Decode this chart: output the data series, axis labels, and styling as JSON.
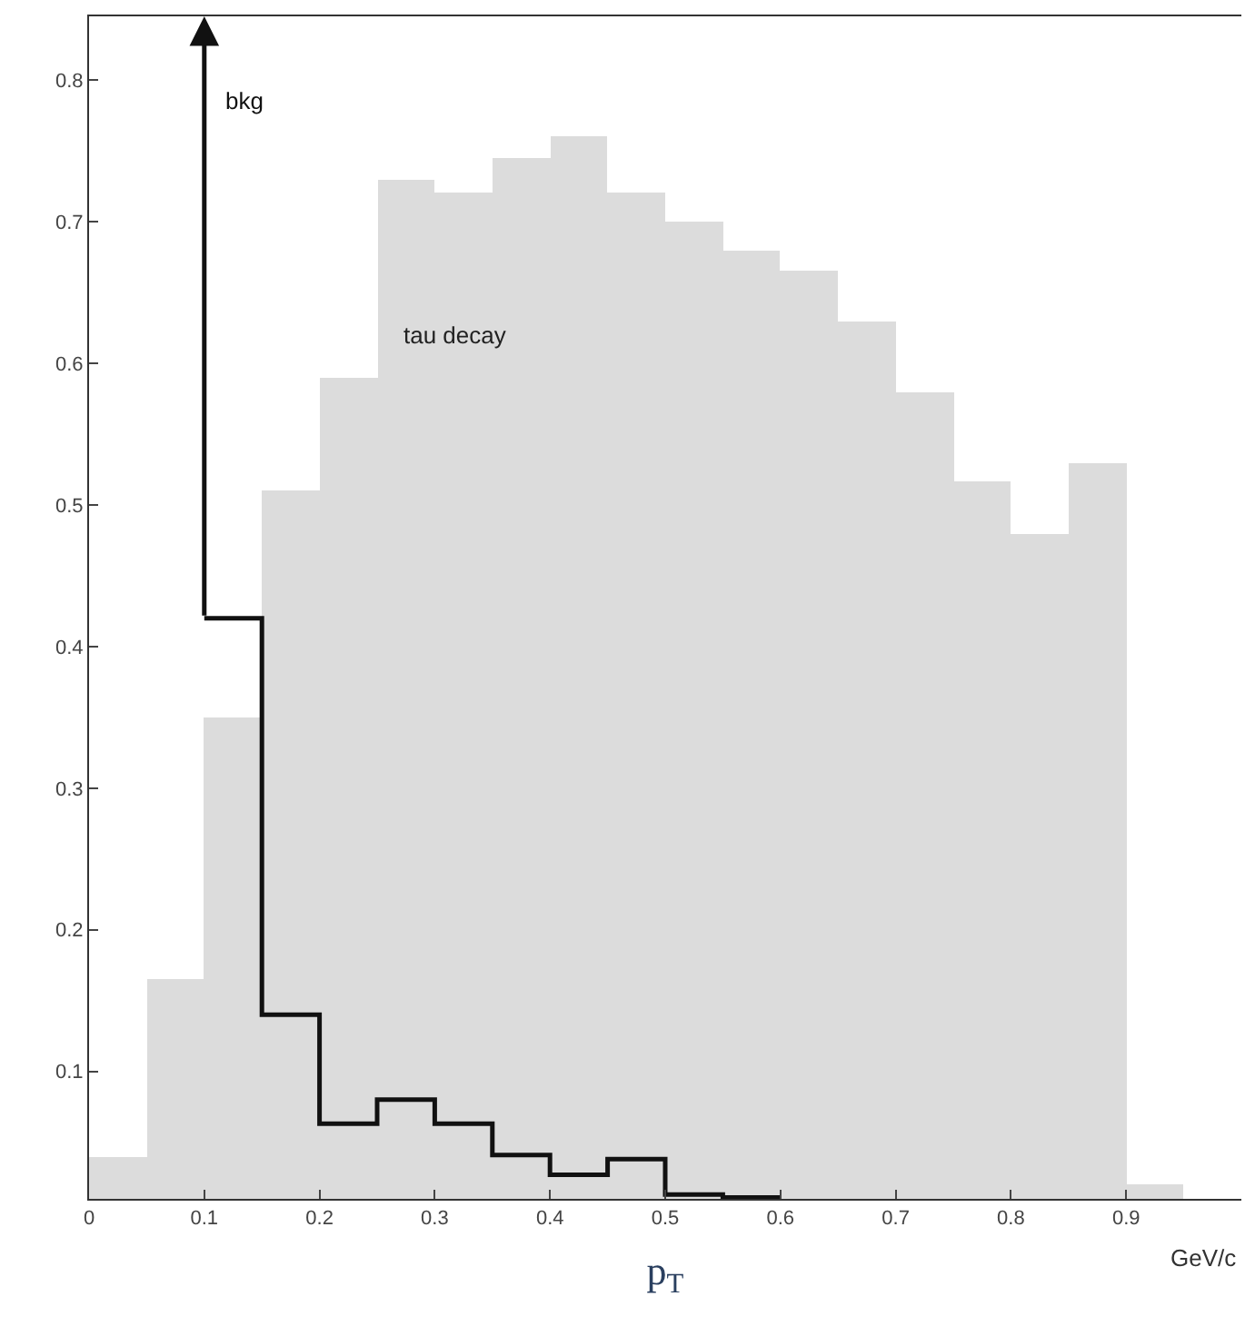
{
  "chart_data": {
    "type": "histogram",
    "xlabel": "p$_{T}$",
    "bins": [
      0,
      0.05,
      0.1,
      0.15,
      0.2,
      0.25,
      0.3,
      0.35,
      0.4,
      0.45,
      0.5,
      0.55,
      0.6,
      0.65,
      0.7,
      0.75,
      0.8,
      0.85,
      0.9,
      0.95
    ],
    "series": [
      {
        "name": "tau decay",
        "color": "#dcdcdc",
        "values": [
          0.04,
          0.165,
          0.35,
          0.51,
          0.59,
          0.73,
          0.72,
          0.745,
          0.76,
          0.72,
          0.7,
          0.68,
          0.665,
          0.63,
          0.58,
          0.517,
          0.48,
          0.53,
          0.02
        ]
      },
      {
        "name": "bkg",
        "type": "step",
        "color": "#111111",
        "x": [
          0.1,
          0.15,
          0.2,
          0.25,
          0.3,
          0.35,
          0.4,
          0.45,
          0.5,
          0.55,
          0.6
        ],
        "values": [
          0.42,
          0.14,
          0.063,
          0.08,
          0.063,
          0.041,
          0.027,
          0.038,
          0.013,
          0.011,
          0.011
        ]
      }
    ],
    "annotations": [
      "GeV/c"
    ],
    "xlim": [
      0,
      1
    ],
    "ylim": [
      0.01,
      0.845
    ],
    "xticks": [
      0,
      0.1,
      0.2,
      0.3,
      0.4,
      0.5,
      0.6,
      0.7,
      0.8,
      0.9
    ],
    "yticks": [
      0.1,
      0.2,
      0.3,
      0.4,
      0.5,
      0.6,
      0.7,
      0.8
    ],
    "legend": false
  }
}
